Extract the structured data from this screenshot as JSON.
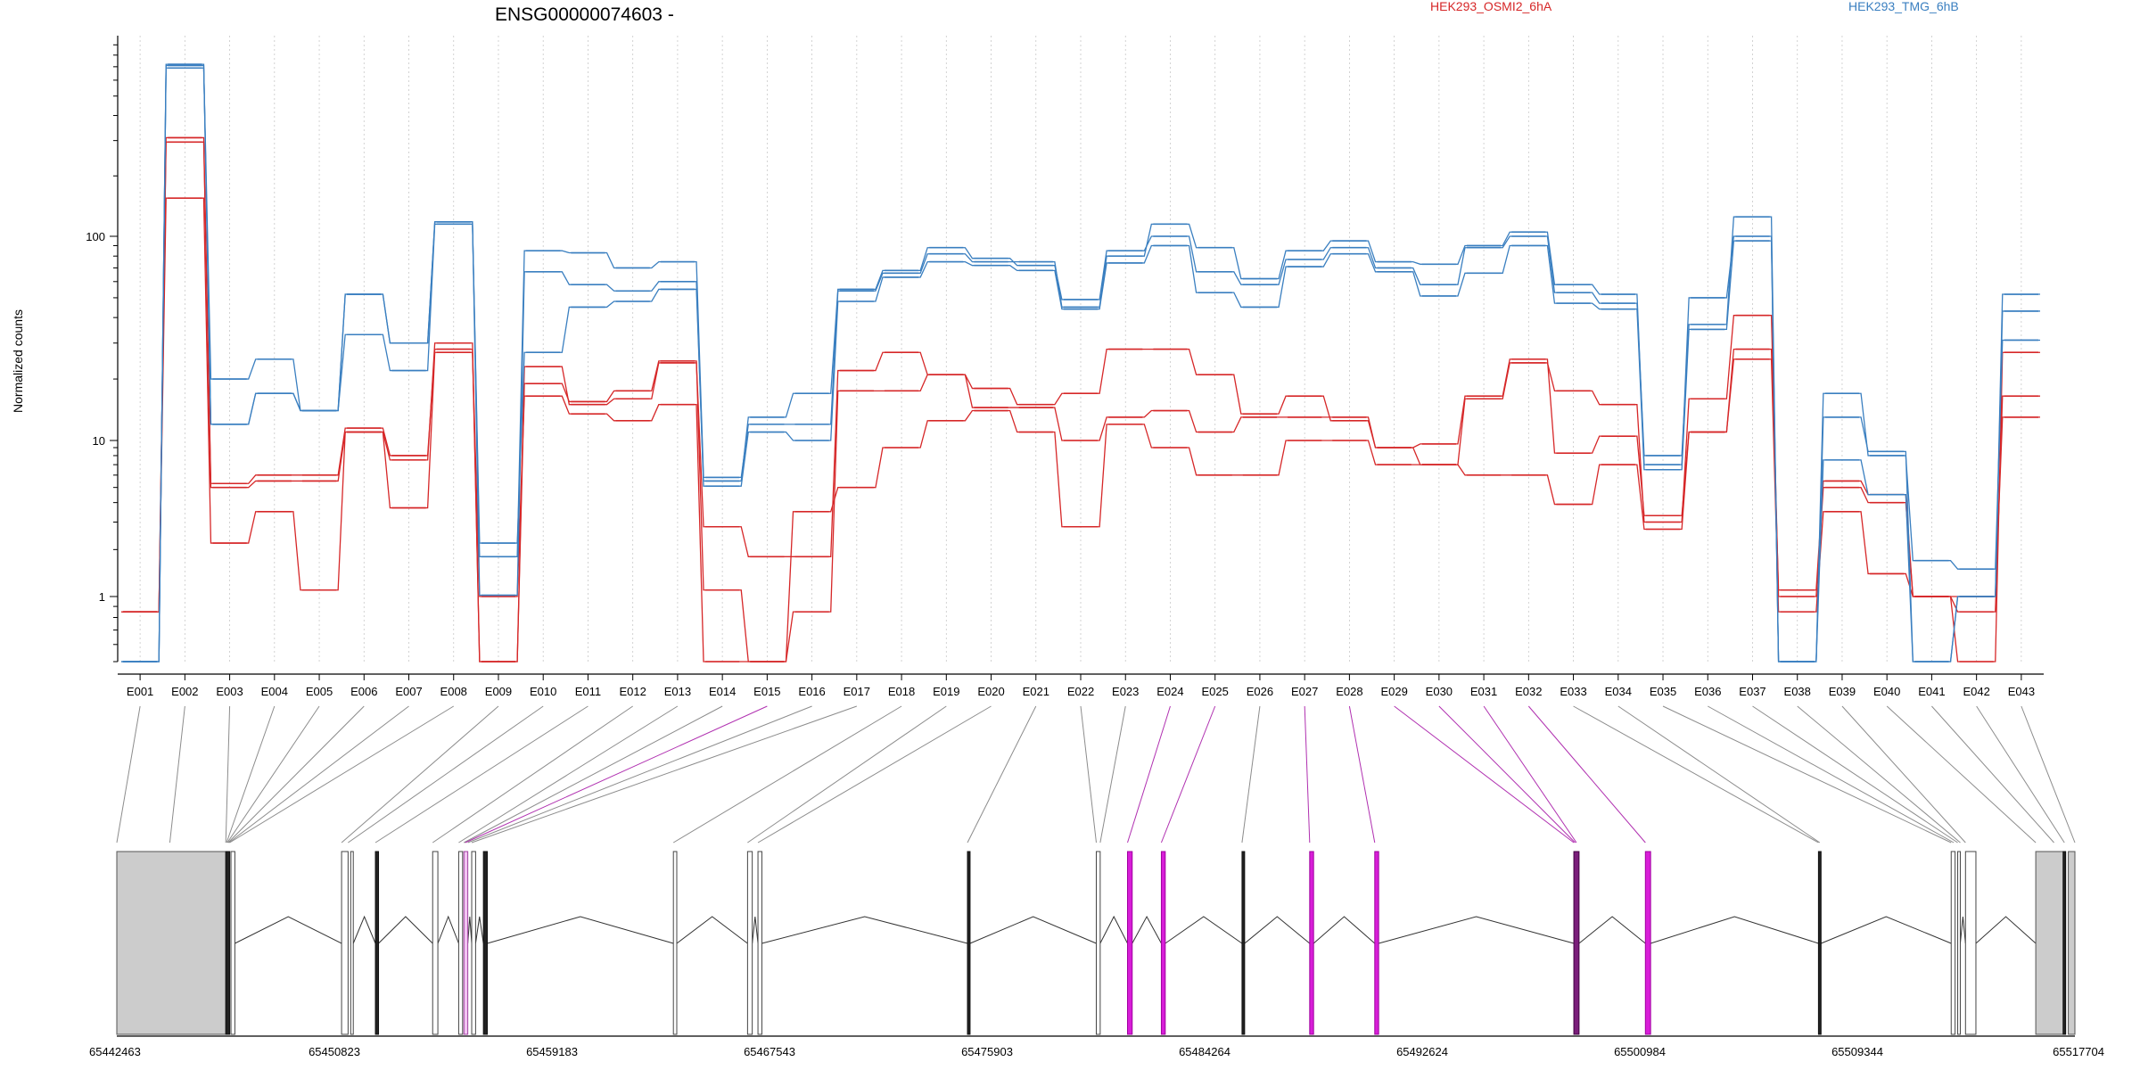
{
  "chart_data": {
    "type": "line",
    "title": "ENSG00000074603 -",
    "ylabel": "Normalized counts",
    "yscale": "log",
    "ylim": [
      0.5,
      1000
    ],
    "yticks": [
      1,
      10,
      100
    ],
    "ytick_labels": [
      "1",
      "10",
      "100"
    ],
    "grid": "vertical dotted lines at each exon bin",
    "legend": [
      {
        "name": "HEK293_OSMI2_6hA",
        "color": "#d62728"
      },
      {
        "name": "HEK293_TMG_6hB",
        "color": "#3a7fc0"
      }
    ],
    "categories": [
      "E001",
      "E002",
      "E003",
      "E004",
      "E005",
      "E006",
      "E007",
      "E008",
      "E009",
      "E010",
      "E011",
      "E012",
      "E013",
      "E014",
      "E015",
      "E016",
      "E017",
      "E018",
      "E019",
      "E020",
      "E021",
      "E022",
      "E023",
      "E024",
      "E025",
      "E026",
      "E027",
      "E028",
      "E029",
      "E030",
      "E031",
      "E032",
      "E033",
      "E034",
      "E035",
      "E036",
      "E037",
      "E038",
      "E039",
      "E040",
      "E041",
      "E042",
      "E043"
    ],
    "series": [
      {
        "group": "HEK293_OSMI2_6hA",
        "color": "#d62728",
        "values": [
          0.85,
          295,
          5,
          5.5,
          5.5,
          11,
          7.5,
          30,
          0.5,
          23,
          15,
          16,
          24,
          2.8,
          1.8,
          1.8,
          22,
          27,
          21,
          18,
          15,
          17,
          28,
          28,
          21,
          13.5,
          16.5,
          12.5,
          9,
          7,
          16,
          24,
          17.5,
          15,
          3,
          16,
          41,
          1,
          5,
          4,
          1,
          0.5,
          27
        ]
      },
      {
        "group": "HEK293_OSMI2_6hA",
        "color": "#d62728",
        "values": [
          0.85,
          310,
          5.3,
          6,
          6,
          11.5,
          8,
          28,
          0.5,
          19,
          15.5,
          17.5,
          24.5,
          1.1,
          0.5,
          0.85,
          17.5,
          17.5,
          21,
          14.5,
          14.5,
          10,
          13,
          14,
          11,
          13,
          13,
          13,
          9,
          9.5,
          16.5,
          25,
          8.3,
          10.5,
          3.3,
          11,
          28,
          1.1,
          5.5,
          4.5,
          1,
          0.85,
          16.5
        ]
      },
      {
        "group": "HEK293_OSMI2_6hA",
        "color": "#d62728",
        "values": [
          0.85,
          155,
          2.2,
          3.5,
          1.1,
          11,
          3.7,
          27,
          1,
          16.5,
          13.5,
          12.5,
          15,
          0.5,
          0.5,
          3.5,
          5,
          9,
          12.5,
          14,
          11,
          2.8,
          12,
          9,
          6,
          6,
          10,
          10,
          7,
          7,
          6,
          6,
          3.9,
          7,
          2.7,
          11,
          25,
          0.85,
          3.5,
          1.4,
          1,
          1,
          13
        ]
      },
      {
        "group": "HEK293_TMG_6hB",
        "color": "#3a7fc0",
        "values": [
          0.5,
          710,
          12,
          17,
          14,
          33,
          22,
          115,
          2.2,
          27,
          45,
          48,
          55,
          5.5,
          13,
          17,
          55,
          68,
          88,
          78,
          72,
          49,
          85,
          100,
          67,
          58,
          77,
          88,
          70,
          58,
          88,
          100,
          53,
          47,
          8,
          37,
          125,
          0.5,
          17,
          8,
          1.7,
          1.5,
          31
        ]
      },
      {
        "group": "HEK293_TMG_6hB",
        "color": "#3a7fc0",
        "values": [
          0.5,
          690,
          20,
          25,
          14,
          52,
          30,
          118,
          1.8,
          85,
          83,
          70,
          75,
          5.8,
          12,
          12,
          54,
          66,
          82,
          75,
          75,
          45,
          80,
          115,
          88,
          62,
          85,
          95,
          75,
          73,
          90,
          105,
          58,
          52,
          7,
          50,
          100,
          0.5,
          13,
          8.5,
          0.5,
          1,
          52
        ]
      },
      {
        "group": "HEK293_TMG_6hB",
        "color": "#3a7fc0",
        "values": [
          0.5,
          720,
          12,
          17,
          14,
          52,
          30,
          118,
          1.02,
          67,
          58,
          54,
          60,
          5.1,
          11,
          10,
          48,
          63,
          75,
          72,
          68,
          44,
          74,
          90,
          53,
          45,
          71,
          82,
          67,
          51,
          66,
          90,
          47,
          44,
          6.5,
          35,
          95,
          0.5,
          7.5,
          4.5,
          0.5,
          1,
          43
        ]
      }
    ],
    "exon_model": {
      "coordinate_ticks": [
        "65442463",
        "65450823",
        "65459183",
        "65467543",
        "65475903",
        "65484264",
        "65492624",
        "65500984",
        "65509344",
        "65517704"
      ],
      "genomic_range": [
        65442463,
        65517704
      ],
      "exons": [
        {
          "start": 65442463,
          "end": 65446650,
          "shade": "gray"
        },
        {
          "start": 65446650,
          "end": 65446800,
          "shade": "black"
        },
        {
          "start": 65446850,
          "end": 65447000,
          "shade": "white"
        },
        {
          "start": 65451100,
          "end": 65451350,
          "shade": "white"
        },
        {
          "start": 65451450,
          "end": 65451550,
          "shade": "white"
        },
        {
          "start": 65452400,
          "end": 65452520,
          "shade": "black"
        },
        {
          "start": 65454600,
          "end": 65454800,
          "shade": "white"
        },
        {
          "start": 65455600,
          "end": 65455750,
          "shade": "white"
        },
        {
          "start": 65455800,
          "end": 65455950,
          "shade": "pink"
        },
        {
          "start": 65456100,
          "end": 65456250,
          "shade": "white"
        },
        {
          "start": 65456550,
          "end": 65456700,
          "shade": "black"
        },
        {
          "start": 65463850,
          "end": 65463980,
          "shade": "white"
        },
        {
          "start": 65466700,
          "end": 65466880,
          "shade": "white"
        },
        {
          "start": 65467100,
          "end": 65467250,
          "shade": "white"
        },
        {
          "start": 65475150,
          "end": 65475250,
          "shade": "black"
        },
        {
          "start": 65480100,
          "end": 65480250,
          "shade": "white"
        },
        {
          "start": 65481300,
          "end": 65481480,
          "shade": "magenta"
        },
        {
          "start": 65482600,
          "end": 65482750,
          "shade": "magenta"
        },
        {
          "start": 65485700,
          "end": 65485800,
          "shade": "black"
        },
        {
          "start": 65488300,
          "end": 65488450,
          "shade": "magenta"
        },
        {
          "start": 65490800,
          "end": 65490950,
          "shade": "magenta"
        },
        {
          "start": 65498450,
          "end": 65498650,
          "shade": "darkmagenta"
        },
        {
          "start": 65501200,
          "end": 65501400,
          "shade": "magenta"
        },
        {
          "start": 65507850,
          "end": 65507950,
          "shade": "black"
        },
        {
          "start": 65512950,
          "end": 65513100,
          "shade": "white"
        },
        {
          "start": 65513200,
          "end": 65513300,
          "shade": "white"
        },
        {
          "start": 65513500,
          "end": 65513900,
          "shade": "white"
        },
        {
          "start": 65516200,
          "end": 65517300,
          "shade": "gray"
        },
        {
          "start": 65517250,
          "end": 65517350,
          "shade": "black"
        },
        {
          "start": 65517450,
          "end": 65517704,
          "shade": "gray"
        }
      ],
      "bin_links": [
        {
          "bin": "E001",
          "pos": 65442463,
          "color": "gray"
        },
        {
          "bin": "E002",
          "pos": 65444500,
          "color": "gray"
        },
        {
          "bin": "E003",
          "pos": 65446650,
          "color": "gray"
        },
        {
          "bin": "E004",
          "pos": 65446680,
          "color": "gray"
        },
        {
          "bin": "E005",
          "pos": 65446710,
          "color": "gray"
        },
        {
          "bin": "E006",
          "pos": 65446740,
          "color": "gray"
        },
        {
          "bin": "E007",
          "pos": 65446770,
          "color": "gray"
        },
        {
          "bin": "E008",
          "pos": 65446800,
          "color": "gray"
        },
        {
          "bin": "E009",
          "pos": 65451100,
          "color": "gray"
        },
        {
          "bin": "E010",
          "pos": 65451350,
          "color": "gray"
        },
        {
          "bin": "E011",
          "pos": 65452400,
          "color": "gray"
        },
        {
          "bin": "E012",
          "pos": 65454600,
          "color": "gray"
        },
        {
          "bin": "E013",
          "pos": 65455600,
          "color": "gray"
        },
        {
          "bin": "E014",
          "pos": 65455800,
          "color": "gray"
        },
        {
          "bin": "E015",
          "pos": 65455850,
          "color": "magenta"
        },
        {
          "bin": "E016",
          "pos": 65455950,
          "color": "gray"
        },
        {
          "bin": "E017",
          "pos": 65456100,
          "color": "gray"
        },
        {
          "bin": "E018",
          "pos": 65463850,
          "color": "gray"
        },
        {
          "bin": "E019",
          "pos": 65466700,
          "color": "gray"
        },
        {
          "bin": "E020",
          "pos": 65467100,
          "color": "gray"
        },
        {
          "bin": "E021",
          "pos": 65475150,
          "color": "gray"
        },
        {
          "bin": "E022",
          "pos": 65480100,
          "color": "gray"
        },
        {
          "bin": "E023",
          "pos": 65480250,
          "color": "gray"
        },
        {
          "bin": "E024",
          "pos": 65481300,
          "color": "magenta"
        },
        {
          "bin": "E025",
          "pos": 65482600,
          "color": "magenta"
        },
        {
          "bin": "E026",
          "pos": 65485700,
          "color": "gray"
        },
        {
          "bin": "E027",
          "pos": 65488300,
          "color": "magenta"
        },
        {
          "bin": "E028",
          "pos": 65490800,
          "color": "magenta"
        },
        {
          "bin": "E029",
          "pos": 65498450,
          "color": "magenta"
        },
        {
          "bin": "E030",
          "pos": 65498500,
          "color": "magenta"
        },
        {
          "bin": "E031",
          "pos": 65498550,
          "color": "magenta"
        },
        {
          "bin": "E032",
          "pos": 65501200,
          "color": "magenta"
        },
        {
          "bin": "E033",
          "pos": 65507850,
          "color": "gray"
        },
        {
          "bin": "E034",
          "pos": 65507900,
          "color": "gray"
        },
        {
          "bin": "E035",
          "pos": 65512950,
          "color": "gray"
        },
        {
          "bin": "E036",
          "pos": 65513050,
          "color": "gray"
        },
        {
          "bin": "E037",
          "pos": 65513200,
          "color": "gray"
        },
        {
          "bin": "E038",
          "pos": 65513300,
          "color": "gray"
        },
        {
          "bin": "E039",
          "pos": 65513500,
          "color": "gray"
        },
        {
          "bin": "E040",
          "pos": 65516200,
          "color": "gray"
        },
        {
          "bin": "E041",
          "pos": 65516900,
          "color": "gray"
        },
        {
          "bin": "E042",
          "pos": 65517300,
          "color": "gray"
        },
        {
          "bin": "E043",
          "pos": 65517704,
          "color": "gray"
        }
      ]
    }
  }
}
